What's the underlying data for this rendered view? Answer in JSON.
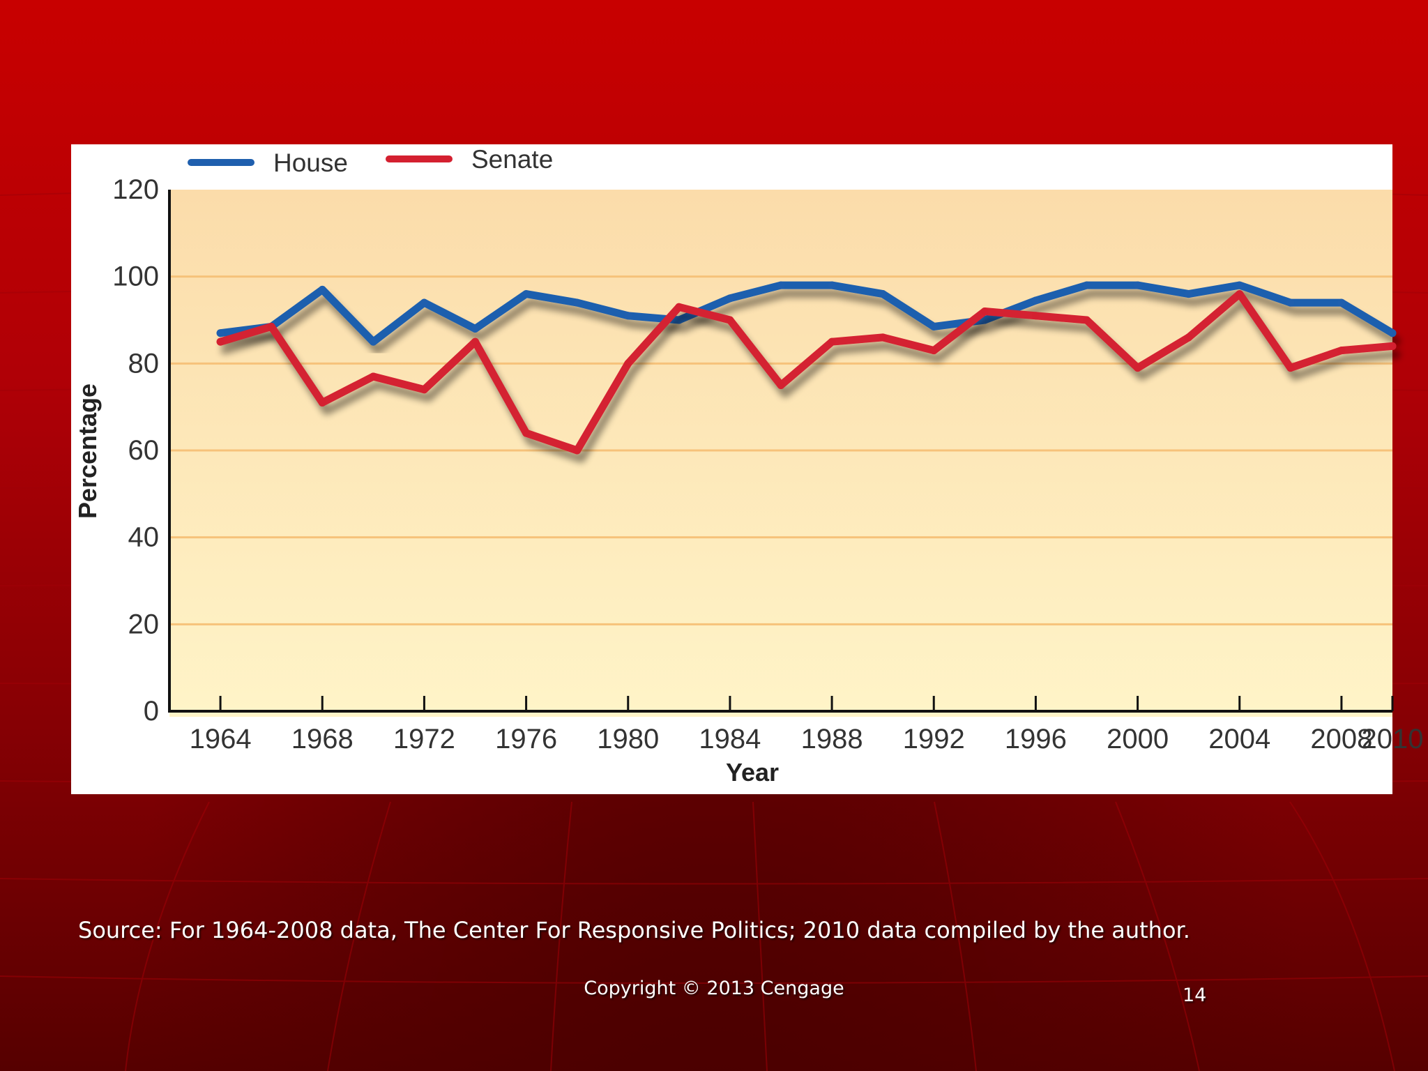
{
  "slide": {
    "source": "Source:  For 1964-2008 data, The Center For Responsive Politics; 2010 data compiled by the author.",
    "copyright": "Copyright © 2013 Cengage",
    "page_number": "14"
  },
  "colors": {
    "house": "#1f5fae",
    "senate": "#d42030",
    "gridline": "#f6c27a",
    "plot_bg_top": "#fbdcaa",
    "plot_bg_bottom": "#fff4c8"
  },
  "chart_data": {
    "type": "line",
    "title": "",
    "xlabel": "Year",
    "ylabel": "Percentage",
    "ylim": [
      0,
      120
    ],
    "xlim": [
      1962,
      2010
    ],
    "yticks": [
      "0",
      "20",
      "40",
      "60",
      "80",
      "100",
      "120"
    ],
    "xticks": [
      "1964",
      "1968",
      "1972",
      "1976",
      "1980",
      "1984",
      "1988",
      "1992",
      "1996",
      "2000",
      "2004",
      "2008",
      "2010"
    ],
    "legend": "top-left",
    "grid": true,
    "series": [
      {
        "name": "House",
        "x": [
          1964,
          1966,
          1968,
          1970,
          1972,
          1974,
          1976,
          1978,
          1980,
          1982,
          1984,
          1986,
          1988,
          1990,
          1992,
          1994,
          1996,
          1998,
          2000,
          2002,
          2004,
          2006,
          2008,
          2010
        ],
        "values": [
          87,
          88.5,
          97,
          85,
          94,
          88,
          96,
          94,
          91,
          90,
          95,
          98,
          98,
          96,
          88.5,
          90,
          94.5,
          98,
          98,
          96,
          98,
          94,
          94,
          87
        ]
      },
      {
        "name": "Senate",
        "x": [
          1964,
          1966,
          1968,
          1970,
          1972,
          1974,
          1976,
          1978,
          1980,
          1982,
          1984,
          1986,
          1988,
          1990,
          1992,
          1994,
          1996,
          1998,
          2000,
          2002,
          2004,
          2006,
          2008,
          2010
        ],
        "values": [
          85,
          88.5,
          71,
          77,
          74,
          85,
          64,
          60,
          80,
          93,
          90,
          75,
          85,
          86,
          83,
          92,
          91,
          90,
          79,
          86,
          96,
          79,
          83,
          84
        ]
      }
    ]
  }
}
